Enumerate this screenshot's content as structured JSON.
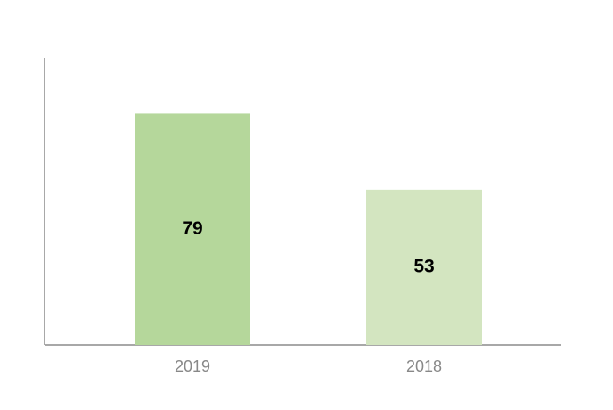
{
  "chart_data": {
    "type": "bar",
    "categories": [
      "2019",
      "2018"
    ],
    "values": [
      79,
      53
    ],
    "colors": [
      "#b5d79b",
      "#d3e5c0"
    ],
    "ylim": [
      0,
      98
    ],
    "grid": false
  }
}
